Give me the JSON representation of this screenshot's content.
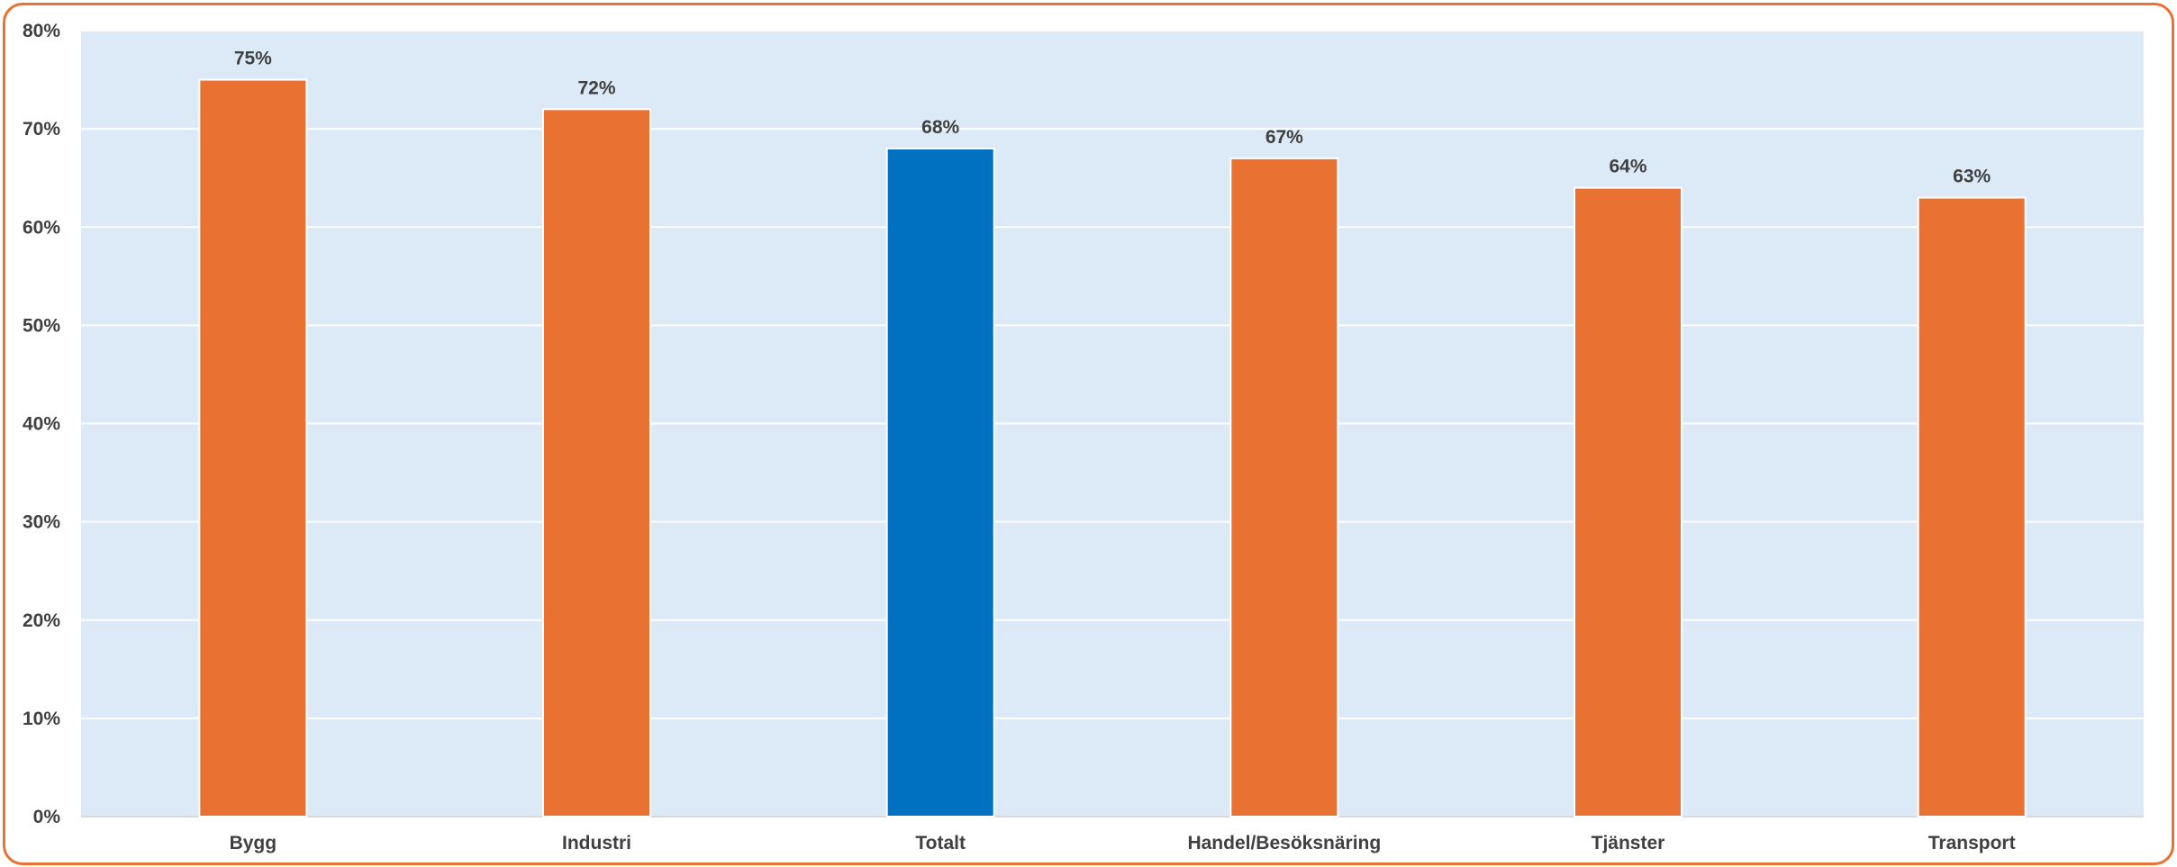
{
  "chart_data": {
    "type": "bar",
    "title": "",
    "xlabel": "",
    "ylabel": "",
    "categories": [
      "Bygg",
      "Industri",
      "Totalt",
      "Handel/Besöksnäring",
      "Tjänster",
      "Transport"
    ],
    "values": [
      75,
      72,
      68,
      67,
      64,
      63
    ],
    "data_labels": [
      "75%",
      "72%",
      "68%",
      "67%",
      "64%",
      "63%"
    ],
    "ylim": [
      0,
      80
    ],
    "yticks": [
      0,
      10,
      20,
      30,
      40,
      50,
      60,
      70,
      80
    ],
    "ytick_labels": [
      "0%",
      "10%",
      "20%",
      "30%",
      "40%",
      "50%",
      "60%",
      "70%",
      "80%"
    ],
    "grid": true,
    "legend": "none",
    "colors": {
      "default_bar": "#E97132",
      "highlight_bar": "#0070C0",
      "plot_background": "#DCE9F6",
      "gridline": "#FFFFFF",
      "frame_border": "#E97132",
      "text": "#404040"
    },
    "highlight_category": "Totalt"
  }
}
